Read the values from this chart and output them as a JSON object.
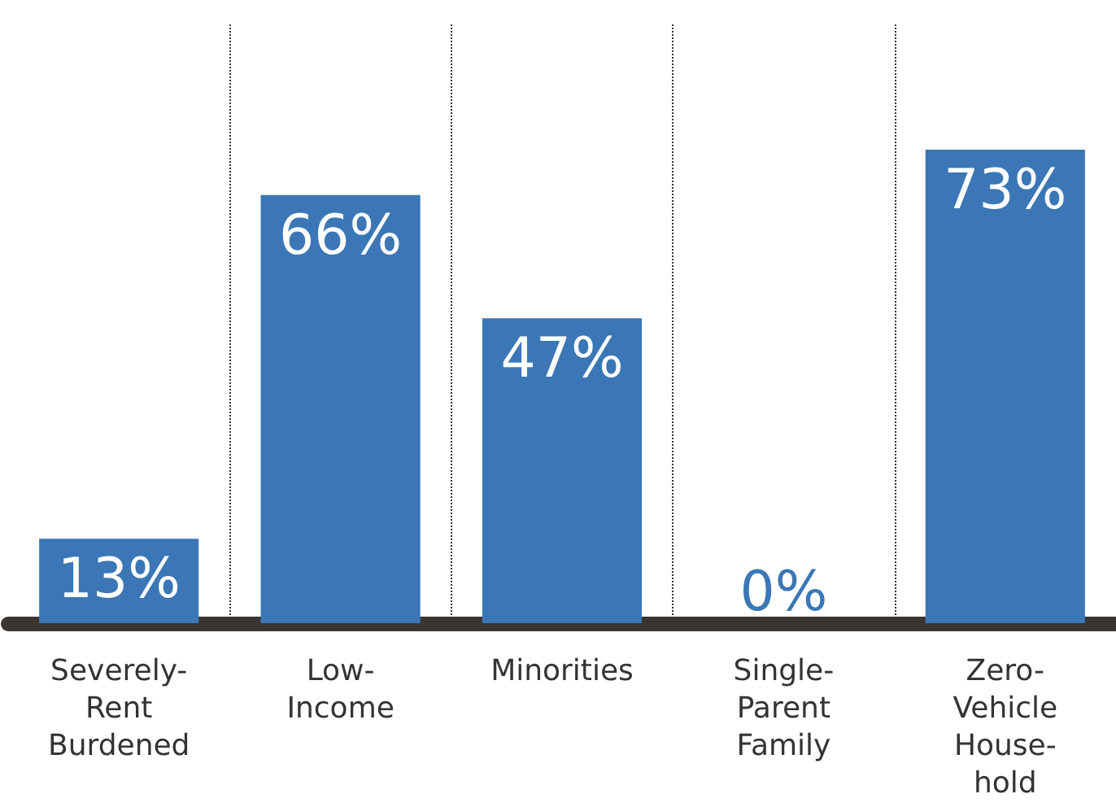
{
  "chart_data": {
    "type": "bar",
    "categories": [
      "Severely-\nRent\nBurdened",
      "Low-\nIncome",
      "Minorities",
      "Single-\nParent\nFamily",
      "Zero-\nVehicle\nHouse-\nhold"
    ],
    "values": [
      13,
      66,
      47,
      0,
      73
    ],
    "value_labels": [
      "13%",
      "66%",
      "47%",
      "0%",
      "73%"
    ],
    "color": "#3b77b6",
    "grid": "x"
  }
}
